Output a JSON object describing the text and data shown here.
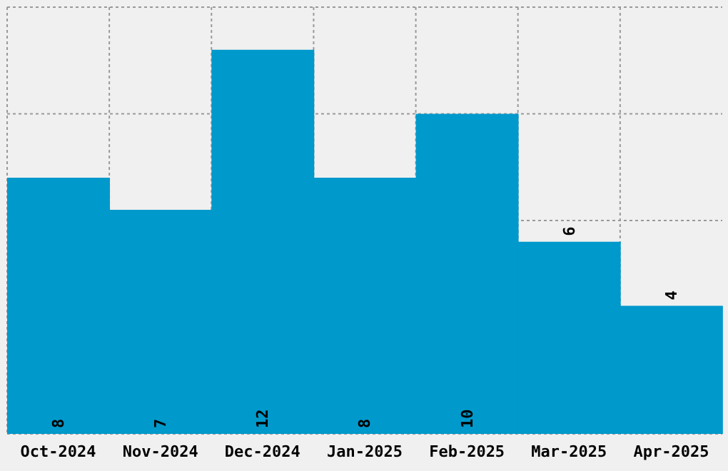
{
  "chart_data": {
    "type": "bar",
    "categories": [
      "Oct-2024",
      "Nov-2024",
      "Dec-2024",
      "Jan-2025",
      "Feb-2025",
      "Mar-2025",
      "Apr-2025"
    ],
    "values": [
      8,
      7,
      12,
      8,
      10,
      6,
      4
    ],
    "color": "#0099cc",
    "ylim": [
      0,
      13.33
    ],
    "tick_labels": "x",
    "grid": true,
    "data_labels": true
  }
}
